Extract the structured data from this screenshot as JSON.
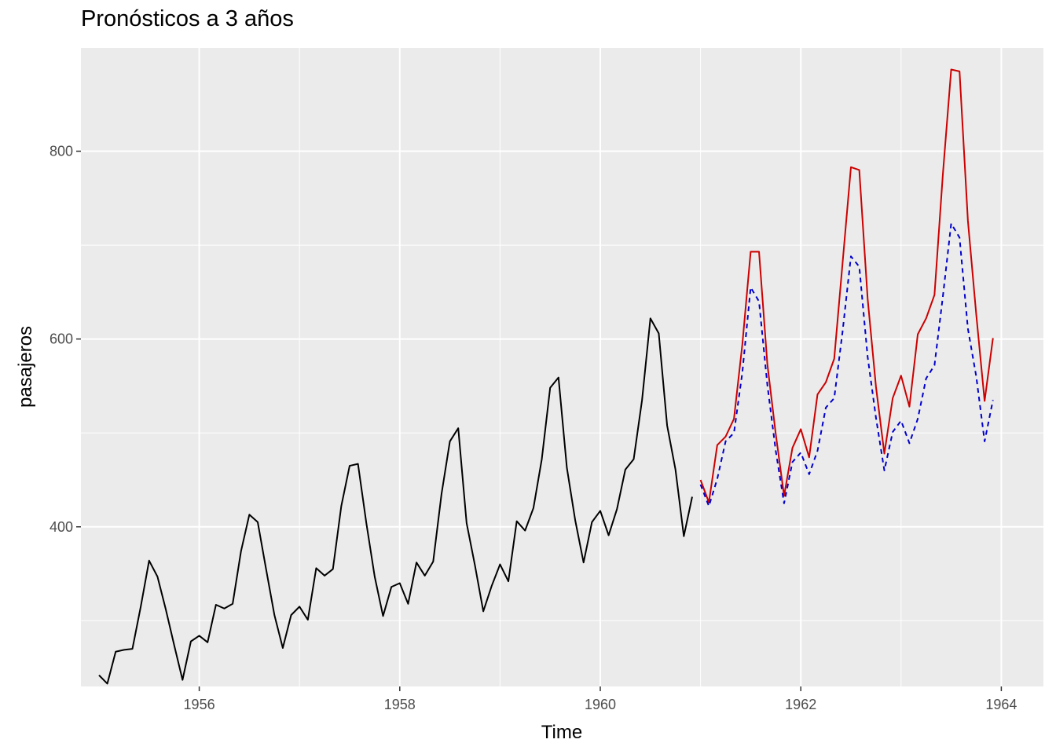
{
  "chart_data": {
    "type": "line",
    "title": "Pronósticos a 3 años",
    "xlabel": "Time",
    "ylabel": "pasajeros",
    "xlim": [
      1954.82,
      1964.42
    ],
    "ylim": [
      230,
      910
    ],
    "x_ticks": [
      1956,
      1958,
      1960,
      1962,
      1964
    ],
    "x_tick_labels": [
      "1956",
      "1958",
      "1960",
      "1962",
      "1964"
    ],
    "y_ticks": [
      400,
      600,
      800
    ],
    "y_tick_labels": [
      "400",
      "600",
      "800"
    ],
    "y_minor_ticks": [
      300,
      500,
      700
    ],
    "grid": true,
    "legend": "none",
    "colors": {
      "panel_background": "#ebebeb",
      "grid": "#ffffff",
      "observed": "#000000",
      "forecast": "#cc0000",
      "forecast_dashed": "#0000cc"
    },
    "series": [
      {
        "x_start": 1955.0,
        "x_step": 0.0833333,
        "style": "solid",
        "color": "#000000",
        "values": [
          242,
          233,
          267,
          269,
          270,
          315,
          364,
          347,
          312,
          274,
          237,
          278,
          284,
          277,
          317,
          313,
          318,
          374,
          413,
          405,
          355,
          306,
          271,
          306,
          315,
          301,
          356,
          348,
          355,
          422,
          465,
          467,
          404,
          347,
          305,
          336,
          340,
          318,
          362,
          348,
          363,
          435,
          491,
          505,
          404,
          359,
          310,
          337,
          360,
          342,
          406,
          396,
          420,
          472,
          548,
          559,
          463,
          407,
          362,
          405,
          417,
          391,
          419,
          461,
          472,
          535,
          622,
          606,
          508,
          461,
          390,
          432
        ]
      },
      {
        "x_start": 1961.0,
        "x_step": 0.0833333,
        "style": "solid",
        "color": "#cc0000",
        "values": [
          450,
          426,
          487,
          496,
          515,
          594,
          693,
          693,
          573,
          499,
          433,
          484,
          504,
          474,
          541,
          554,
          579,
          681,
          783,
          780,
          643,
          549,
          478,
          537,
          561,
          528,
          605,
          622,
          647,
          775,
          887,
          885,
          726,
          626,
          534,
          601
        ]
      },
      {
        "x_start": 1961.0,
        "x_step": 0.0833333,
        "style": "dashed",
        "color": "#0000cc",
        "values": [
          445,
          422,
          451,
          491,
          500,
          564,
          655,
          640,
          551,
          481,
          425,
          469,
          479,
          456,
          481,
          527,
          537,
          608,
          688,
          677,
          581,
          516,
          460,
          501,
          513,
          489,
          515,
          558,
          572,
          645,
          723,
          708,
          611,
          560,
          491,
          535
        ]
      }
    ]
  }
}
